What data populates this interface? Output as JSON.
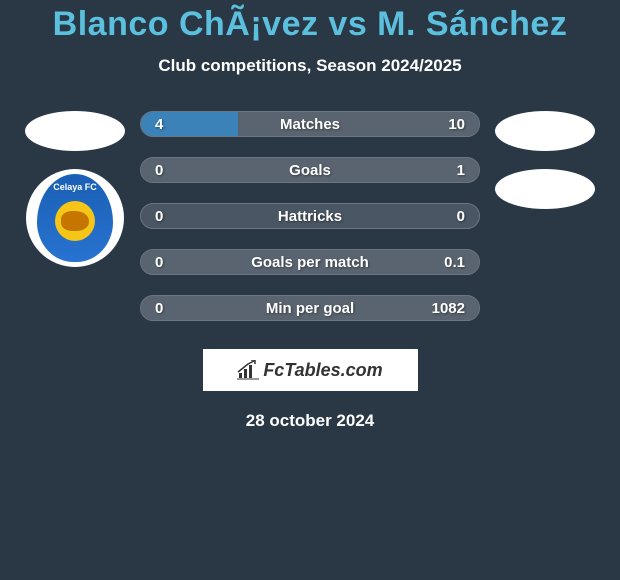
{
  "title": "Blanco ChÃ¡vez vs M. Sánchez",
  "subtitle": "Club competitions, Season 2024/2025",
  "date": "28 october 2024",
  "logo_text": "FcTables.com",
  "club_name": "Celaya FC",
  "bar_color_player1": "#3a82b8",
  "bar_color_player2": "#5a6470",
  "bar_bg_color": "#4a5663",
  "bar_border_color": "#6b7682",
  "background_color": "#2a3744",
  "title_color": "#5bc0de",
  "text_color": "#ffffff",
  "stats": [
    {
      "label": "Matches",
      "left_val": "4",
      "right_val": "10",
      "left_pct": 28.6,
      "right_pct": 71.4
    },
    {
      "label": "Goals",
      "left_val": "0",
      "right_val": "1",
      "left_pct": 0,
      "right_pct": 100
    },
    {
      "label": "Hattricks",
      "left_val": "0",
      "right_val": "0",
      "left_pct": 0,
      "right_pct": 0
    },
    {
      "label": "Goals per match",
      "left_val": "0",
      "right_val": "0.1",
      "left_pct": 0,
      "right_pct": 100
    },
    {
      "label": "Min per goal",
      "left_val": "0",
      "right_val": "1082",
      "left_pct": 0,
      "right_pct": 100
    }
  ]
}
